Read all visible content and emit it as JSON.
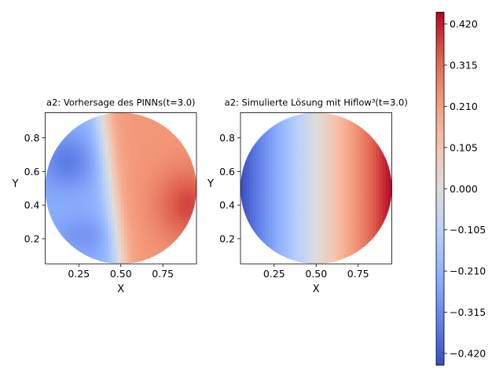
{
  "chart_data": [
    {
      "type": "heatmap",
      "title": "a2: Vorhersage des PINNs(t=3.0)",
      "xlabel": "X",
      "ylabel": "Y",
      "xlim": [
        0.05,
        0.95
      ],
      "ylim": [
        0.05,
        0.95
      ],
      "xticks": [
        0.25,
        0.5,
        0.75
      ],
      "xtick_labels": [
        "0.25",
        "0.50",
        "0.75"
      ],
      "yticks": [
        0.2,
        0.4,
        0.6,
        0.8
      ],
      "ytick_labels": [
        "0.2",
        "0.4",
        "0.6",
        "0.8"
      ],
      "domain_shape": "circle",
      "domain_center": [
        0.5,
        0.5
      ],
      "domain_radius": 0.45,
      "field_description_points": [
        {
          "x": 0.2,
          "y": 0.65,
          "value": -0.22
        },
        {
          "x": 0.4,
          "y": 0.5,
          "value": 0.0
        },
        {
          "x": 0.6,
          "y": 0.5,
          "value": 0.2
        },
        {
          "x": 0.85,
          "y": 0.4,
          "value": 0.3
        }
      ]
    },
    {
      "type": "heatmap",
      "title": "a2: Simulierte Lösung mit Hiflow³(t=3.0)",
      "xlabel": "X",
      "ylabel": "Y",
      "xlim": [
        0.05,
        0.95
      ],
      "ylim": [
        0.05,
        0.95
      ],
      "xticks": [
        0.25,
        0.5,
        0.75
      ],
      "xtick_labels": [
        "0.25",
        "0.50",
        "0.75"
      ],
      "yticks": [
        0.2,
        0.4,
        0.6,
        0.8
      ],
      "ytick_labels": [
        "0.2",
        "0.4",
        "0.6",
        "0.8"
      ],
      "domain_shape": "circle",
      "domain_center": [
        0.5,
        0.5
      ],
      "domain_radius": 0.45,
      "field_description_points": [
        {
          "x": 0.05,
          "y": 0.5,
          "value": -0.45
        },
        {
          "x": 0.5,
          "y": 0.5,
          "value": 0.0
        },
        {
          "x": 0.95,
          "y": 0.5,
          "value": 0.45
        }
      ]
    }
  ],
  "colorbar": {
    "colormap": "coolwarm",
    "vmin": -0.45,
    "vmax": 0.45,
    "ticks": [
      -0.42,
      -0.315,
      -0.21,
      -0.105,
      0.0,
      0.105,
      0.21,
      0.315,
      0.42
    ],
    "tick_labels": [
      "−0.420",
      "−0.315",
      "−0.210",
      "−0.105",
      "0.000",
      "0.105",
      "0.210",
      "0.315",
      "0.420"
    ]
  }
}
